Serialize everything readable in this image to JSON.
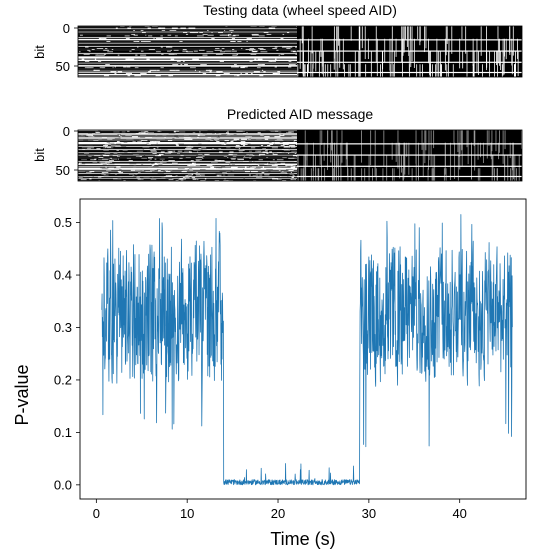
{
  "chart_data": [
    {
      "type": "heatmap",
      "title": "Testing data (wheel speed AID)",
      "ylabel": "bit",
      "yticks": [
        0,
        50
      ],
      "ylim": [
        0,
        64
      ],
      "colors": {
        "on": "#000000",
        "off": "#ffffff"
      }
    },
    {
      "type": "heatmap",
      "title": "Predicted AID message",
      "ylabel": "bit",
      "yticks": [
        0,
        50
      ],
      "ylim": [
        0,
        64
      ],
      "colors": {
        "on": "#000000",
        "off": "#ffffff",
        "mid": "#9a9a9a"
      }
    },
    {
      "type": "line",
      "title": "",
      "xlabel": "Time (s)",
      "ylabel": "P-value",
      "xlim": [
        -1.8,
        47.3
      ],
      "ylim": [
        -0.027,
        0.545
      ],
      "xticks": [
        0,
        10,
        20,
        30,
        40
      ],
      "yticks": [
        0.0,
        0.1,
        0.2,
        0.3,
        0.4,
        0.5
      ],
      "ytick_labels": [
        "0.0",
        "0.1",
        "0.2",
        "0.3",
        "0.4",
        "0.5"
      ],
      "line_color": "#1f77b4",
      "segments": [
        {
          "x_start": 0.6,
          "x_end": 14.0,
          "mean": 0.33,
          "spread": 0.12,
          "min": 0.09,
          "max": 0.51
        },
        {
          "x_start": 14.0,
          "x_end": 29.0,
          "mean": 0.005,
          "spread": 0.01,
          "min": 0.0,
          "max": 0.05
        },
        {
          "x_start": 29.0,
          "x_end": 45.8,
          "mean": 0.33,
          "spread": 0.11,
          "min": 0.07,
          "max": 0.52
        }
      ],
      "n_samples": 1500
    }
  ]
}
